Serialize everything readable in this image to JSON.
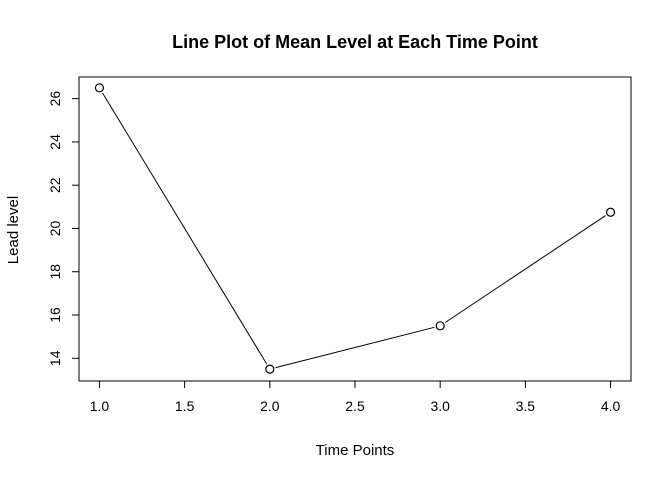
{
  "chart_data": {
    "type": "line",
    "title": "Line Plot of Mean Level at Each Time Point",
    "xlabel": "Time Points",
    "ylabel": "Lead level",
    "x": [
      1,
      2,
      3,
      4
    ],
    "series": [
      {
        "values": [
          26.5,
          13.5,
          15.5,
          20.75
        ]
      }
    ],
    "xlim": [
      0.88,
      4.12
    ],
    "ylim": [
      12.95,
      27.0
    ],
    "xticks": [
      1.0,
      1.5,
      2.0,
      2.5,
      3.0,
      3.5,
      4.0
    ],
    "xtick_labels": [
      "1.0",
      "1.5",
      "2.0",
      "2.5",
      "3.0",
      "3.5",
      "4.0"
    ],
    "yticks": [
      14,
      16,
      18,
      20,
      22,
      24,
      26
    ],
    "ytick_labels": [
      "14",
      "16",
      "18",
      "20",
      "22",
      "24",
      "26"
    ],
    "grid": false,
    "marker": "open-circle",
    "line_color": "#000000"
  }
}
